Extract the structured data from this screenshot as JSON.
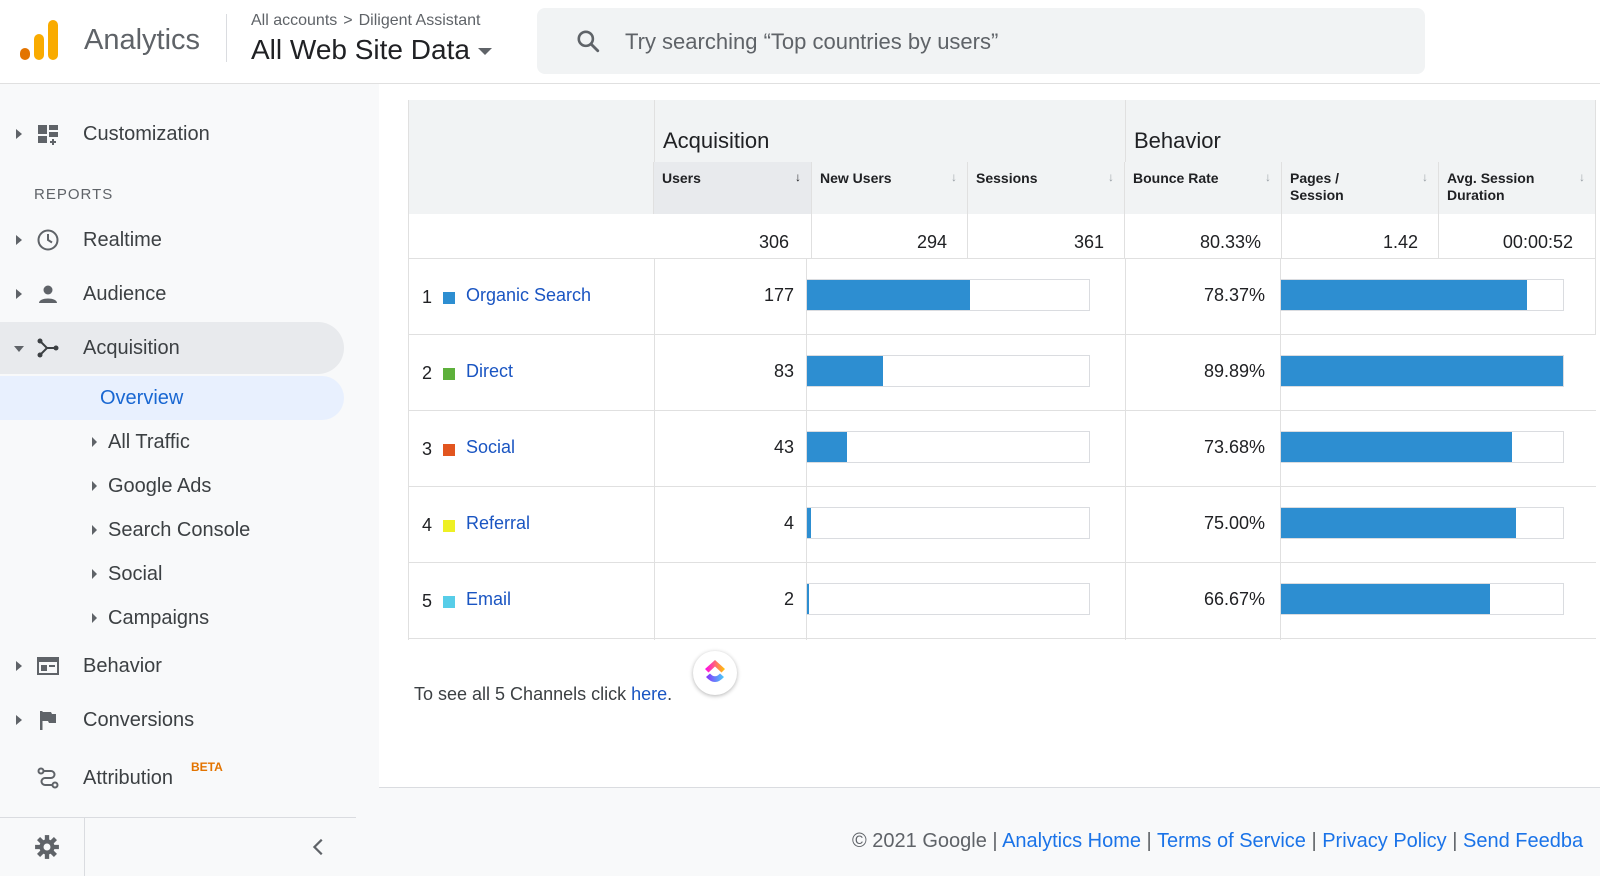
{
  "header": {
    "app_name": "Analytics",
    "breadcrumb_root": "All accounts",
    "breadcrumb_sep": ">",
    "breadcrumb_account": "Diligent Assistant",
    "property": "All Web Site Data",
    "search_placeholder": "Try searching “Top countries by users”"
  },
  "sidebar": {
    "customization": "Customization",
    "reports_label": "REPORTS",
    "realtime": "Realtime",
    "audience": "Audience",
    "acquisition": "Acquisition",
    "overview": "Overview",
    "all_traffic": "All Traffic",
    "google_ads": "Google Ads",
    "search_console": "Search Console",
    "social": "Social",
    "campaigns": "Campaigns",
    "behavior": "Behavior",
    "conversions": "Conversions",
    "attribution": "Attribution",
    "beta": "BETA"
  },
  "table": {
    "group_acquisition": "Acquisition",
    "group_behavior": "Behavior",
    "columns": [
      "Users",
      "New Users",
      "Sessions",
      "Bounce Rate",
      "Pages / Session",
      "Avg. Session Duration"
    ],
    "col_pages_1": "Pages /",
    "col_pages_2": "Session",
    "col_avg_1": "Avg. Session",
    "col_avg_2": "Duration",
    "sort_icon": "↓",
    "totals": {
      "users": "306",
      "new_users": "294",
      "sessions": "361",
      "bounce_rate": "80.33%",
      "pages_session": "1.42",
      "avg_duration": "00:00:52"
    },
    "rows": [
      {
        "num": "1",
        "channel": "Organic Search",
        "color": "#2d8ed1",
        "users": "177",
        "users_pct": 0.578,
        "bounce": "78.37%",
        "bounce_pct": 0.8718
      },
      {
        "num": "2",
        "channel": "Direct",
        "color": "#5db03b",
        "users": "83",
        "users_pct": 0.271,
        "bounce": "89.89%",
        "bounce_pct": 1.0
      },
      {
        "num": "3",
        "channel": "Social",
        "color": "#e2551f",
        "users": "43",
        "users_pct": 0.1405,
        "bounce": "73.68%",
        "bounce_pct": 0.8197
      },
      {
        "num": "4",
        "channel": "Referral",
        "color": "#eef024",
        "users": "4",
        "users_pct": 0.013,
        "bounce": "75.00%",
        "bounce_pct": 0.8343
      },
      {
        "num": "5",
        "channel": "Email",
        "color": "#57cde8",
        "users": "2",
        "users_pct": 0.0065,
        "bounce": "66.67%",
        "bounce_pct": 0.7417
      }
    ]
  },
  "note": {
    "text": "To see all 5 Channels click ",
    "link": "here",
    "end": "."
  },
  "footer": {
    "copyright": "© 2021 Google",
    "sep": " | ",
    "analytics_home": "Analytics Home",
    "terms": "Terms of Service",
    "privacy": "Privacy Policy",
    "feedback": "Send Feedba"
  }
}
